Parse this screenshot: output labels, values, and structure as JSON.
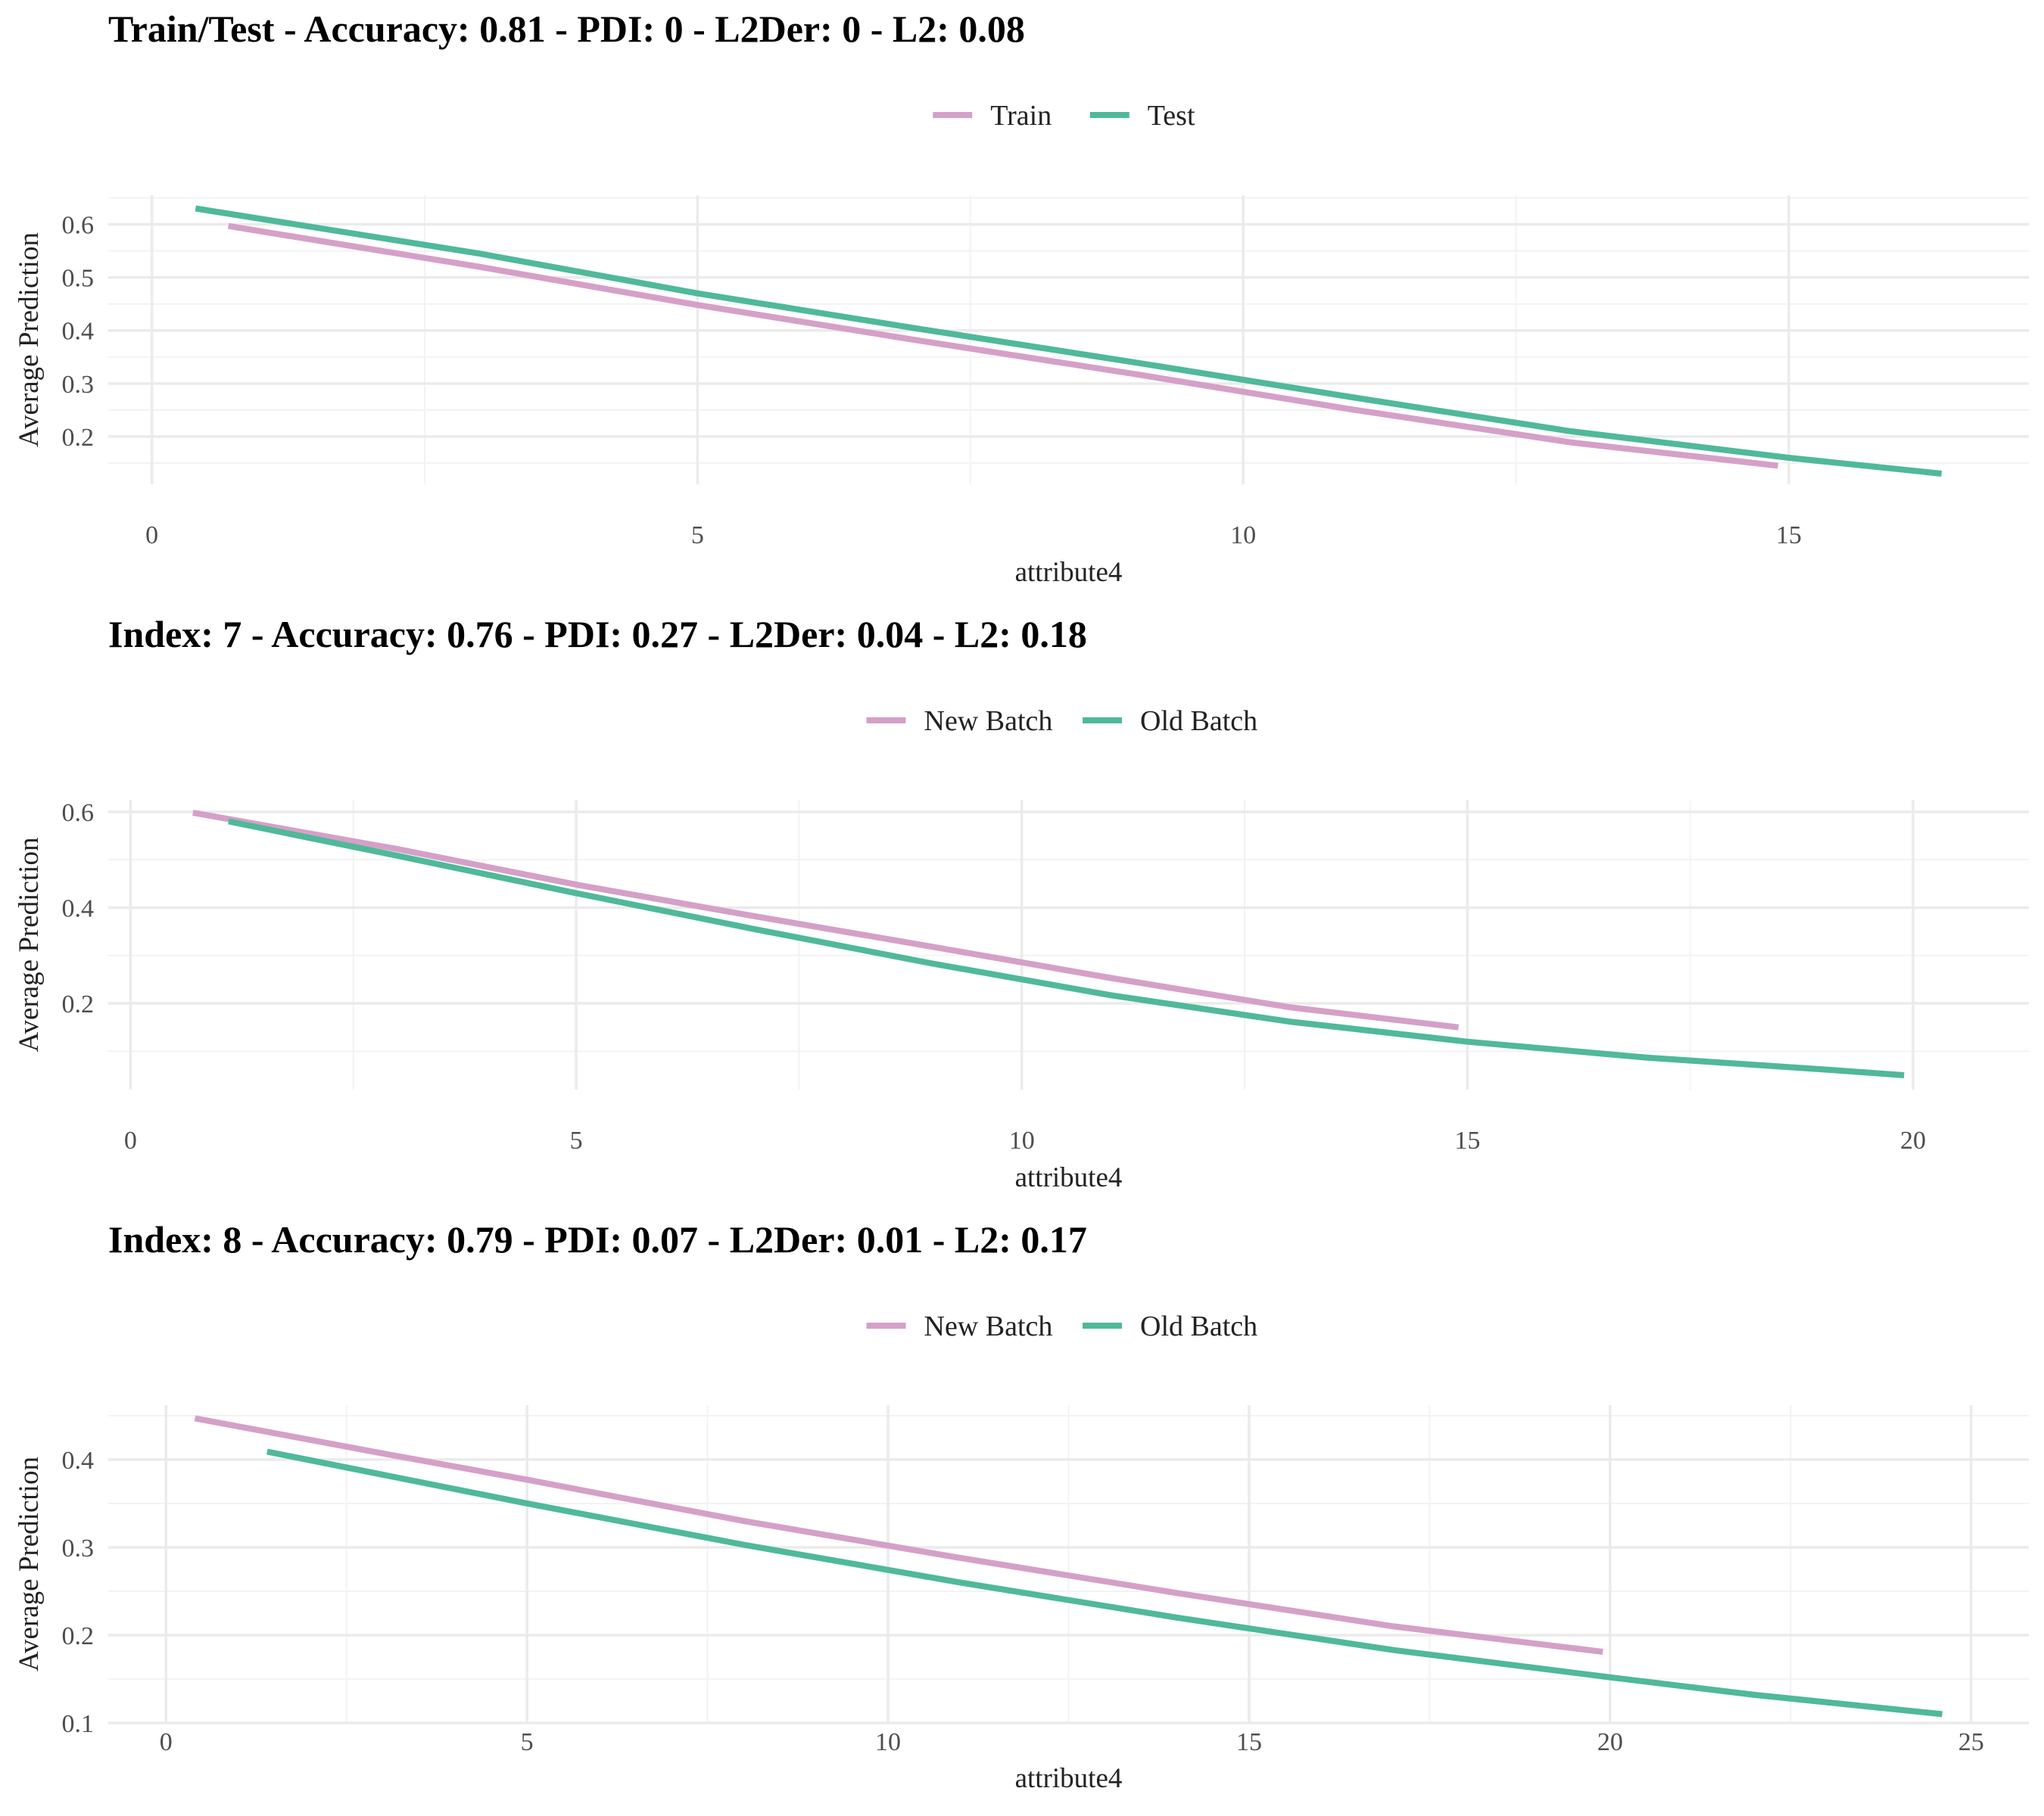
{
  "colors": {
    "pink": "#D5A0C8",
    "green": "#4FB99A",
    "grid_major": "#EBEBEB",
    "grid_minor": "#F3F3F3"
  },
  "chart_data": [
    {
      "type": "line",
      "title": "Train/Test - Accuracy: 0.81 - PDI: 0 - L2Der: 0 - L2: 0.08",
      "xlabel": "attribute4",
      "ylabel": "Average Prediction",
      "xlim": [
        -0.4,
        17.2
      ],
      "ylim": [
        0.11,
        0.655
      ],
      "xticks": [
        0,
        5,
        10,
        15
      ],
      "yticks": [
        0.2,
        0.3,
        0.4,
        0.5,
        0.6
      ],
      "legend_position": "top",
      "grid": true,
      "series": [
        {
          "name": "Train",
          "color": "#D5A0C8",
          "x": [
            0.7,
            3,
            5,
            7,
            9,
            11,
            13,
            14.9
          ],
          "y": [
            0.597,
            0.52,
            0.448,
            0.382,
            0.318,
            0.251,
            0.189,
            0.145
          ]
        },
        {
          "name": "Test",
          "color": "#4FB99A",
          "x": [
            0.4,
            3,
            5,
            7,
            9,
            11,
            13,
            15,
            16.4
          ],
          "y": [
            0.63,
            0.545,
            0.47,
            0.404,
            0.34,
            0.274,
            0.21,
            0.16,
            0.13
          ]
        }
      ]
    },
    {
      "type": "line",
      "title": "Index: 7 - Accuracy: 0.76 - PDI: 0.27 - L2Der: 0.04 - L2: 0.18",
      "xlabel": "attribute4",
      "ylabel": "Average Prediction",
      "xlim": [
        -0.25,
        21.3
      ],
      "ylim": [
        0.02,
        0.625
      ],
      "xticks": [
        0,
        5,
        10,
        15,
        20
      ],
      "yticks": [
        0.2,
        0.4,
        0.6
      ],
      "legend_position": "top",
      "grid": true,
      "series": [
        {
          "name": "New Batch",
          "color": "#D5A0C8",
          "x": [
            0.7,
            3,
            5,
            7,
            9,
            11,
            13,
            14.9
          ],
          "y": [
            0.598,
            0.522,
            0.448,
            0.382,
            0.318,
            0.253,
            0.192,
            0.15
          ]
        },
        {
          "name": "Old Batch",
          "color": "#4FB99A",
          "x": [
            1.1,
            3,
            5,
            7,
            9,
            11,
            13,
            15,
            17,
            19,
            19.9
          ],
          "y": [
            0.58,
            0.508,
            0.43,
            0.355,
            0.283,
            0.217,
            0.162,
            0.12,
            0.087,
            0.062,
            0.05
          ]
        }
      ]
    },
    {
      "type": "line",
      "title": "Index: 8 - Accuracy: 0.79 - PDI: 0.07 - L2Der: 0.01 - L2: 0.17",
      "xlabel": "attribute4",
      "ylabel": "Average Prediction",
      "xlim": [
        -0.8,
        25.8
      ],
      "ylim": [
        0.1,
        0.462
      ],
      "xticks": [
        0,
        5,
        10,
        15,
        20,
        25
      ],
      "yticks": [
        0.1,
        0.2,
        0.3,
        0.4
      ],
      "legend_position": "top",
      "grid": true,
      "series": [
        {
          "name": "New Batch",
          "color": "#D5A0C8",
          "x": [
            0.4,
            3,
            5,
            8,
            11,
            14,
            17,
            19.9
          ],
          "y": [
            0.447,
            0.407,
            0.377,
            0.33,
            0.288,
            0.248,
            0.21,
            0.181
          ]
        },
        {
          "name": "Old Batch",
          "color": "#4FB99A",
          "x": [
            1.4,
            5,
            8,
            11,
            14,
            17,
            20,
            22,
            24.6
          ],
          "y": [
            0.409,
            0.35,
            0.303,
            0.26,
            0.22,
            0.183,
            0.152,
            0.132,
            0.11
          ]
        }
      ]
    }
  ]
}
